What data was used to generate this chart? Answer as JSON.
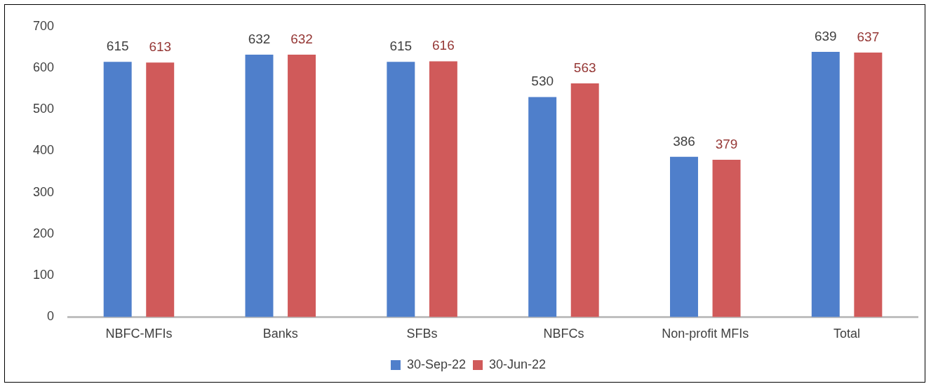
{
  "chart_data": {
    "type": "bar",
    "categories": [
      "NBFC-MFIs",
      "Banks",
      "SFBs",
      "NBFCs",
      "Non-profit MFIs",
      "Total"
    ],
    "series": [
      {
        "name": "30-Sep-22",
        "color": "#4f7fcb",
        "values": [
          615,
          632,
          615,
          530,
          386,
          639
        ]
      },
      {
        "name": "30-Jun-22",
        "color": "#d05a5a",
        "values": [
          613,
          632,
          616,
          563,
          379,
          637
        ]
      }
    ],
    "ylim": [
      0,
      700
    ],
    "yticks": [
      0,
      100,
      200,
      300,
      400,
      500,
      600,
      700
    ],
    "grid": false,
    "legend": "bottom",
    "data_labels": true
  }
}
